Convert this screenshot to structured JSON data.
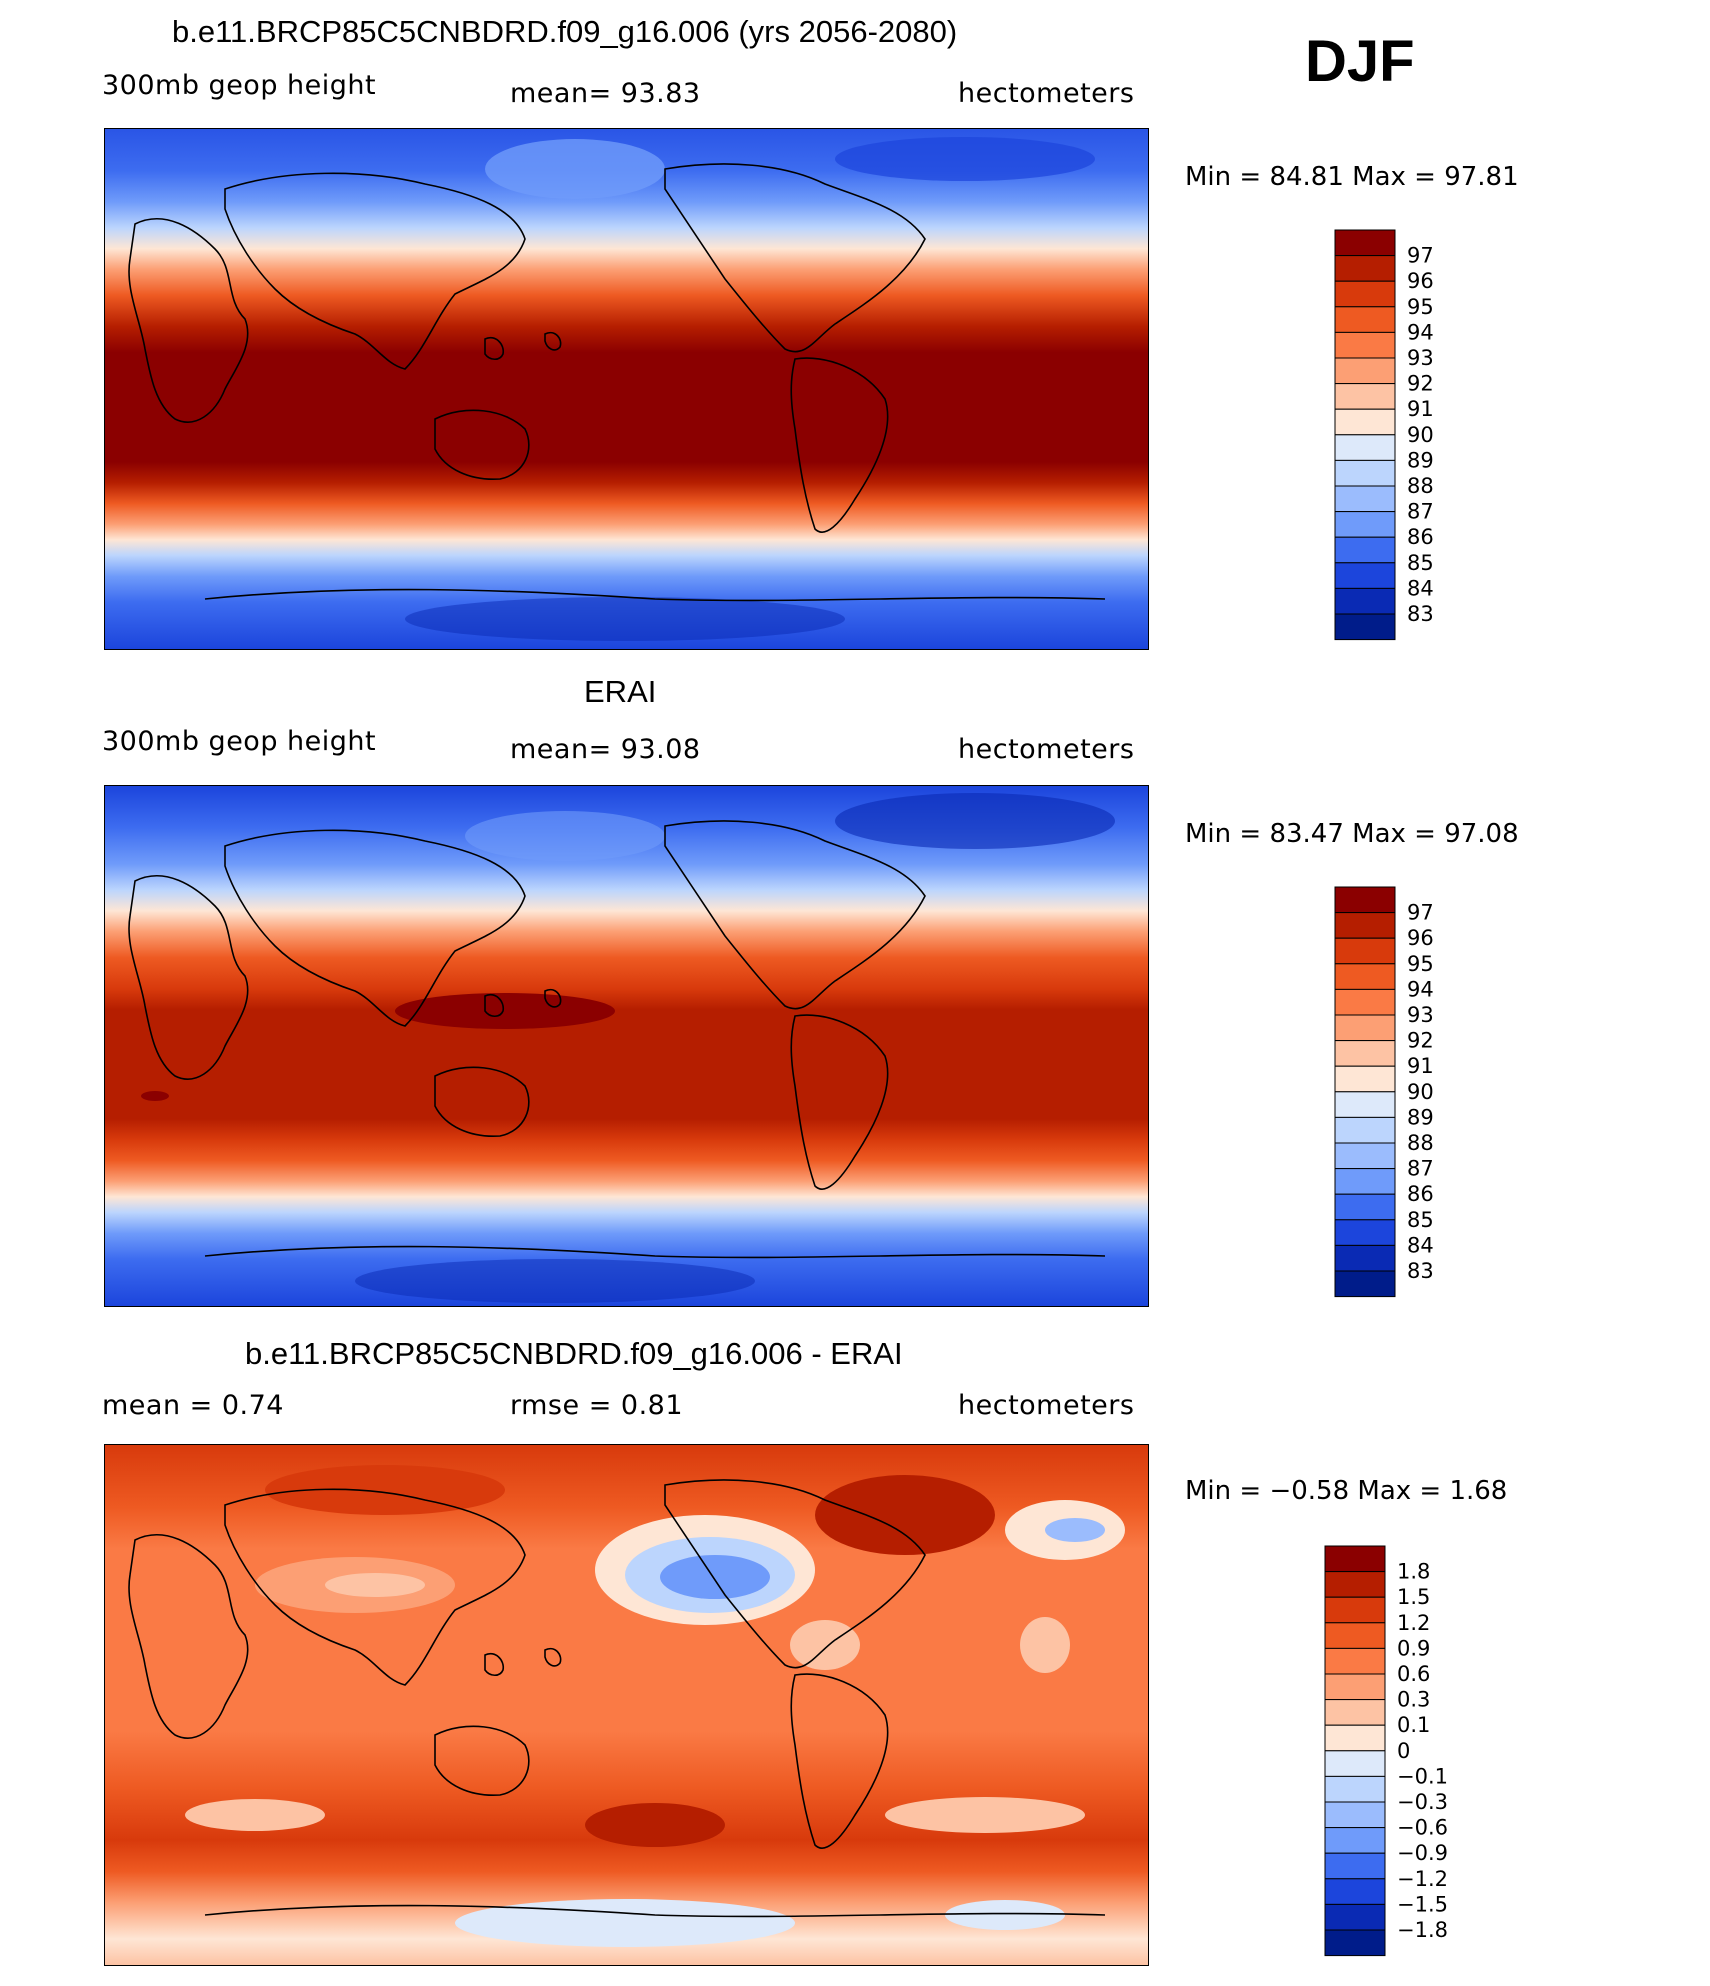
{
  "season": "DJF",
  "panels": [
    {
      "title": "b.e11.BRCP85C5CNBDRD.f09_g16.006 (yrs 2056-2080)",
      "left": "300mb geop height",
      "center": "mean=   93.83",
      "right": "hectometers",
      "minmax": "Min =    84.81  Max =    97.81"
    },
    {
      "title": "ERAI",
      "left": "300mb geop height",
      "center": "mean=   93.08",
      "right": "hectometers",
      "minmax": "Min =    83.47  Max =    97.08"
    },
    {
      "title": "b.e11.BRCP85C5CNBDRD.f09_g16.006 - ERAI",
      "left": "mean =     0.74",
      "center": "rmse =     0.81",
      "right": "hectometers",
      "minmax": "Min =   −0.58  Max =     1.68"
    }
  ],
  "colorbar_abs": {
    "labels": [
      "97",
      "96",
      "95",
      "94",
      "93",
      "92",
      "91",
      "90",
      "89",
      "88",
      "87",
      "86",
      "85",
      "84",
      "83"
    ],
    "colors": [
      "#8b0000",
      "#b51e00",
      "#d83a0c",
      "#ee5a22",
      "#fa7a45",
      "#fc9f74",
      "#fdc3a4",
      "#fee6d5",
      "#dde9fa",
      "#bcd5fd",
      "#9bbcfd",
      "#6f9bfa",
      "#3d6cf0",
      "#1c45dc",
      "#0a2ab4",
      "#001c8a"
    ]
  },
  "colorbar_diff": {
    "labels": [
      "1.8",
      "1.5",
      "1.2",
      "0.9",
      "0.6",
      "0.3",
      "0.1",
      "0",
      "−0.1",
      "−0.3",
      "−0.6",
      "−0.9",
      "−1.2",
      "−1.5",
      "−1.8"
    ],
    "colors": [
      "#8b0000",
      "#b51e00",
      "#d83a0c",
      "#ee5a22",
      "#fa7a45",
      "#fc9f74",
      "#fdc3a4",
      "#fee6d5",
      "#dde9fa",
      "#bcd5fd",
      "#9bbcfd",
      "#6f9bfa",
      "#3d6cf0",
      "#1c45dc",
      "#0a2ab4",
      "#001c8a"
    ]
  },
  "chart_data": [
    {
      "type": "heatmap",
      "title": "b.e11.BRCP85C5CNBDRD.f09_g16.006 (yrs 2056-2080)",
      "variable": "300mb geop height",
      "units": "hectometers",
      "mean": 93.83,
      "min": 84.81,
      "max": 97.81,
      "levels": [
        83,
        84,
        85,
        86,
        87,
        88,
        89,
        90,
        91,
        92,
        93,
        94,
        95,
        96,
        97
      ]
    },
    {
      "type": "heatmap",
      "title": "ERAI",
      "variable": "300mb geop height",
      "units": "hectometers",
      "mean": 93.08,
      "min": 83.47,
      "max": 97.08,
      "levels": [
        83,
        84,
        85,
        86,
        87,
        88,
        89,
        90,
        91,
        92,
        93,
        94,
        95,
        96,
        97
      ]
    },
    {
      "type": "heatmap",
      "title": "b.e11.BRCP85C5CNBDRD.f09_g16.006 - ERAI",
      "units": "hectometers",
      "mean": 0.74,
      "rmse": 0.81,
      "min": -0.58,
      "max": 1.68,
      "levels": [
        -1.8,
        -1.5,
        -1.2,
        -0.9,
        -0.6,
        -0.3,
        -0.1,
        0,
        0.1,
        0.3,
        0.6,
        0.9,
        1.2,
        1.5,
        1.8
      ]
    }
  ]
}
